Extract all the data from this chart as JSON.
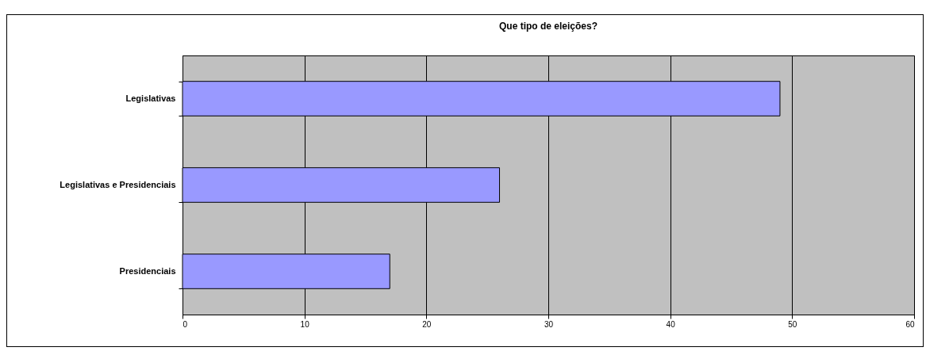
{
  "chart_data": {
    "type": "bar",
    "orientation": "horizontal",
    "title": "Que tipo de eleições?",
    "categories": [
      "Legislativas",
      "Legislativas e Presidenciais",
      "Presidenciais"
    ],
    "values": [
      49,
      26,
      17
    ],
    "color": "#9999ff",
    "xlim": [
      0,
      60
    ],
    "xticks": [
      0,
      10,
      20,
      30,
      40,
      50,
      60
    ],
    "grid": "x"
  }
}
